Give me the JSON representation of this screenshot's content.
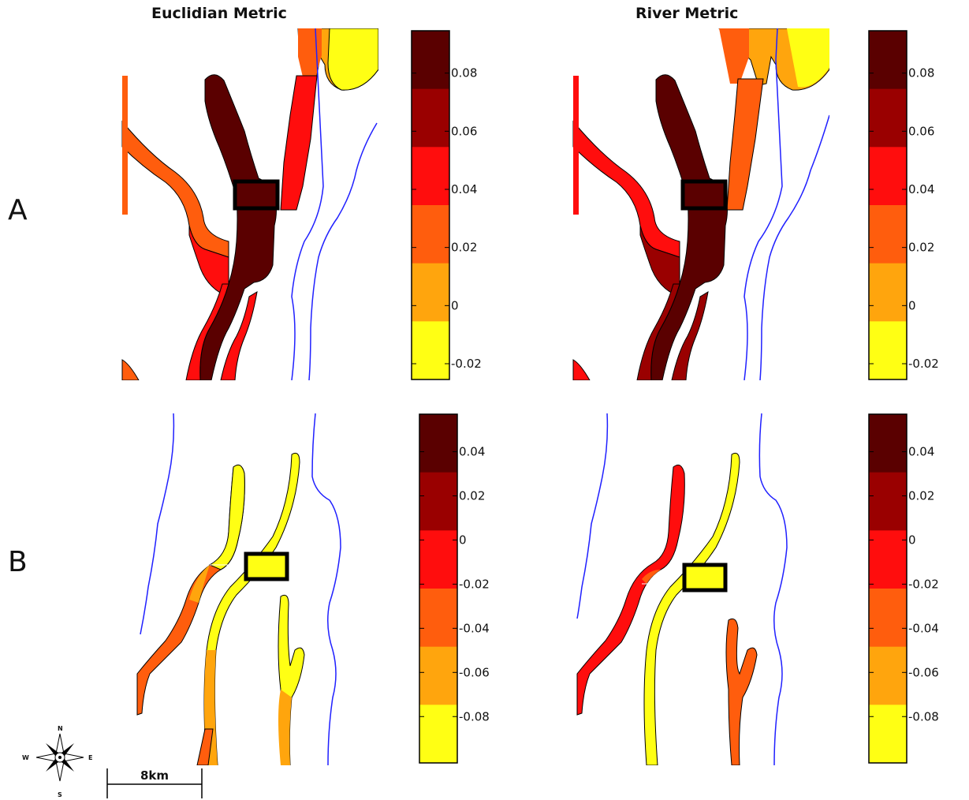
{
  "figure": {
    "column_titles": [
      "Euclidian Metric",
      "River Metric"
    ],
    "row_labels": [
      "A",
      "B"
    ]
  },
  "colors": {
    "level1": "#5a0000",
    "level2": "#9a0000",
    "level3": "#ff0d0d",
    "level4": "#ff5d0d",
    "level5": "#ffa50d",
    "level6": "#ffff14",
    "river": "#2020ff",
    "outline": "#000000"
  },
  "colorbars": {
    "A": {
      "ticks": [
        "0.08",
        "0.06",
        "0.04",
        "0.02",
        "0",
        "-0.02"
      ]
    },
    "B": {
      "ticks": [
        "0.04",
        "0.02",
        "0",
        "-0.02",
        "-0.04",
        "-0.06",
        "-0.08"
      ]
    }
  },
  "scale_bar": {
    "label": "8km"
  },
  "compass": {
    "north": "N",
    "south": "S",
    "east": "E",
    "west": "W"
  },
  "icons": [
    "compass-rose-icon",
    "scale-bar-icon"
  ]
}
